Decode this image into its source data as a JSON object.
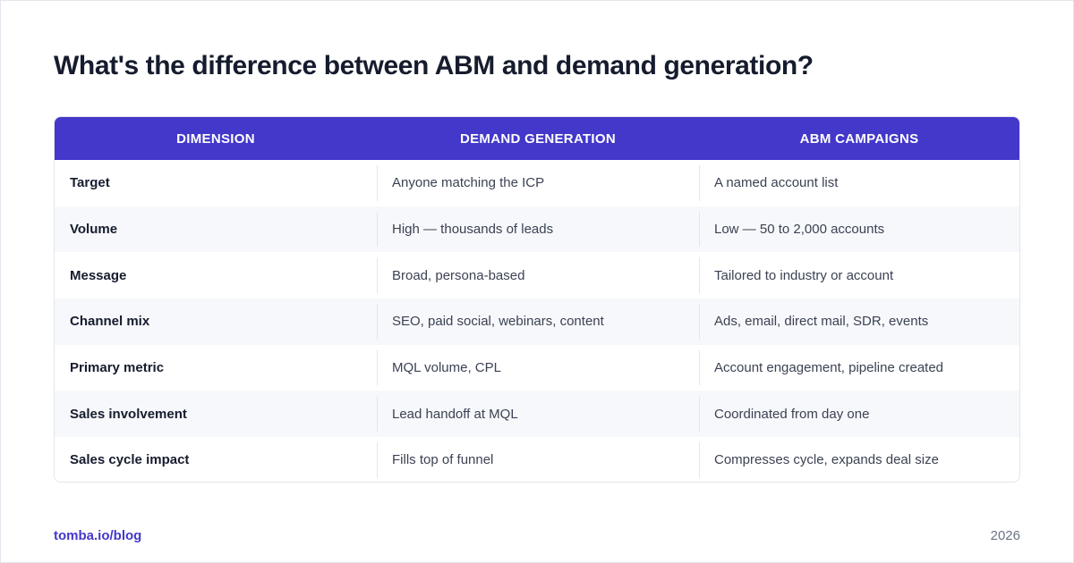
{
  "title": "What's the difference between ABM and demand generation?",
  "table": {
    "headers": [
      "DIMENSION",
      "DEMAND GENERATION",
      "ABM CAMPAIGNS"
    ],
    "rows": [
      [
        "Target",
        "Anyone matching the ICP",
        "A named account list"
      ],
      [
        "Volume",
        "High — thousands of leads",
        "Low — 50 to 2,000 accounts"
      ],
      [
        "Message",
        "Broad, persona-based",
        "Tailored to industry or account"
      ],
      [
        "Channel mix",
        "SEO, paid social, webinars, content",
        "Ads, email, direct mail, SDR, events"
      ],
      [
        "Primary metric",
        "MQL volume, CPL",
        "Account engagement, pipeline created"
      ],
      [
        "Sales involvement",
        "Lead handoff at MQL",
        "Coordinated from day one"
      ],
      [
        "Sales cycle impact",
        "Fills top of funnel",
        "Compresses cycle, expands deal size"
      ]
    ]
  },
  "footer": {
    "link": "tomba.io/blog",
    "year": "2026"
  },
  "colors": {
    "header_bg": "#4338ca",
    "title_text": "#161c2e",
    "link": "#4338ca"
  }
}
